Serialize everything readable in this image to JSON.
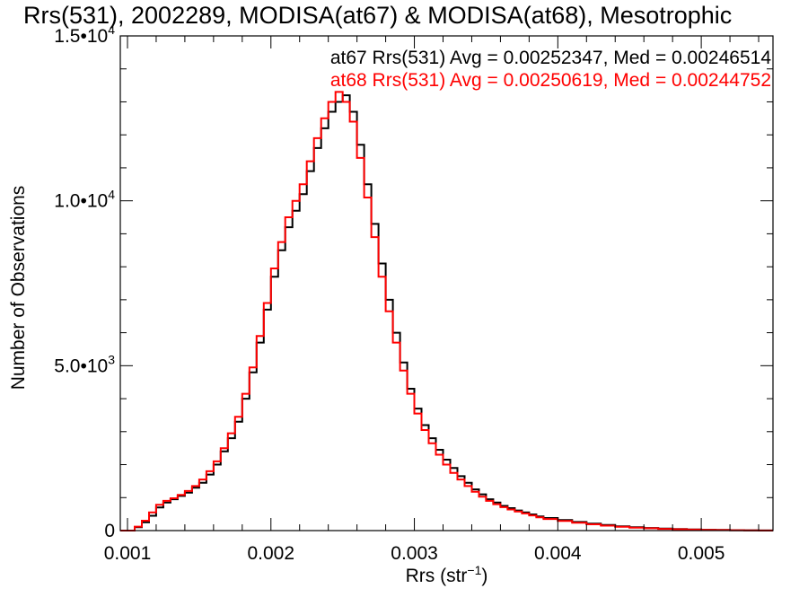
{
  "chart_data": {
    "type": "line",
    "title": "Rrs(531), 2002289, MODISA(at67) & MODISA(at68), Mesotrophic",
    "xlabel": "Rrs (str",
    "xlabel_sup": "-1",
    "xlabel_suffix": ")",
    "ylabel": "Number of Observations",
    "xlim": [
      0.00095,
      0.0055
    ],
    "ylim": [
      0,
      15000
    ],
    "x_ticks": [
      {
        "value": 0.001,
        "label": "0.001"
      },
      {
        "value": 0.002,
        "label": "0.002"
      },
      {
        "value": 0.003,
        "label": "0.003"
      },
      {
        "value": 0.004,
        "label": "0.004"
      },
      {
        "value": 0.005,
        "label": "0.005"
      }
    ],
    "y_ticks": [
      {
        "value": 0,
        "label": "0",
        "sup": ""
      },
      {
        "value": 5000,
        "label": "5.0•10",
        "sup": "3"
      },
      {
        "value": 10000,
        "label": "1.0•10",
        "sup": "4"
      },
      {
        "value": 15000,
        "label": "1.5•10",
        "sup": "4"
      }
    ],
    "grid": false,
    "legend_position": "top-right",
    "series": [
      {
        "name": "at67 Rrs(531) Avg = 0.00252347, Med = 0.00246514",
        "color": "#000000",
        "x": [
          0.00095,
          0.00105,
          0.0011,
          0.00115,
          0.0012,
          0.00125,
          0.0013,
          0.00135,
          0.0014,
          0.00145,
          0.0015,
          0.00155,
          0.0016,
          0.00165,
          0.0017,
          0.00175,
          0.0018,
          0.00185,
          0.0019,
          0.00195,
          0.002,
          0.00205,
          0.0021,
          0.00215,
          0.0022,
          0.00225,
          0.0023,
          0.00235,
          0.0024,
          0.00245,
          0.0025,
          0.00255,
          0.0026,
          0.00265,
          0.0027,
          0.00275,
          0.0028,
          0.00285,
          0.0029,
          0.00295,
          0.003,
          0.00305,
          0.0031,
          0.00315,
          0.0032,
          0.00325,
          0.0033,
          0.00335,
          0.0034,
          0.00345,
          0.0035,
          0.00355,
          0.0036,
          0.00365,
          0.0037,
          0.00375,
          0.0038,
          0.00385,
          0.0039,
          0.004,
          0.0041,
          0.0042,
          0.0043,
          0.0044,
          0.0045,
          0.0046,
          0.0047,
          0.0048,
          0.0049,
          0.005,
          0.0051,
          0.0052,
          0.0053,
          0.0054,
          0.0055
        ],
        "y": [
          0,
          100,
          250,
          450,
          700,
          850,
          950,
          1050,
          1150,
          1300,
          1450,
          1700,
          2000,
          2400,
          2800,
          3300,
          4000,
          4800,
          5700,
          6700,
          7700,
          8500,
          9200,
          9700,
          10200,
          10900,
          11600,
          12200,
          12700,
          13000,
          13200,
          12700,
          11700,
          10500,
          9300,
          8100,
          7000,
          6000,
          5100,
          4300,
          3700,
          3200,
          2800,
          2450,
          2150,
          1900,
          1650,
          1450,
          1250,
          1100,
          950,
          850,
          750,
          680,
          610,
          550,
          490,
          430,
          380,
          320,
          260,
          210,
          170,
          130,
          100,
          80,
          60,
          45,
          35,
          25,
          18,
          12,
          8,
          4,
          2
        ]
      },
      {
        "name": "at68 Rrs(531) Avg = 0.00250619, Med = 0.00244752",
        "color": "#ff0000",
        "x": [
          0.00095,
          0.00105,
          0.0011,
          0.00115,
          0.0012,
          0.00125,
          0.0013,
          0.00135,
          0.0014,
          0.00145,
          0.0015,
          0.00155,
          0.0016,
          0.00165,
          0.0017,
          0.00175,
          0.0018,
          0.00185,
          0.0019,
          0.00195,
          0.002,
          0.00205,
          0.0021,
          0.00215,
          0.0022,
          0.00225,
          0.0023,
          0.00235,
          0.0024,
          0.00245,
          0.0025,
          0.00255,
          0.0026,
          0.00265,
          0.0027,
          0.00275,
          0.0028,
          0.00285,
          0.0029,
          0.00295,
          0.003,
          0.00305,
          0.0031,
          0.00315,
          0.0032,
          0.00325,
          0.0033,
          0.00335,
          0.0034,
          0.00345,
          0.0035,
          0.00355,
          0.0036,
          0.00365,
          0.0037,
          0.00375,
          0.0038,
          0.00385,
          0.0039,
          0.004,
          0.0041,
          0.0042,
          0.0043,
          0.0044,
          0.0045,
          0.0046,
          0.0047,
          0.0048,
          0.0049,
          0.005,
          0.0051,
          0.0052,
          0.0053,
          0.0054,
          0.0055
        ],
        "y": [
          0,
          120,
          300,
          550,
          780,
          900,
          980,
          1080,
          1200,
          1350,
          1550,
          1800,
          2100,
          2500,
          2950,
          3450,
          4150,
          4950,
          5900,
          6900,
          7950,
          8750,
          9500,
          10000,
          10500,
          11200,
          11900,
          12500,
          13000,
          13300,
          13000,
          12400,
          11300,
          10100,
          8900,
          7700,
          6650,
          5700,
          4850,
          4150,
          3550,
          3050,
          2650,
          2300,
          2000,
          1750,
          1550,
          1350,
          1180,
          1030,
          900,
          800,
          710,
          640,
          580,
          520,
          460,
          400,
          350,
          290,
          240,
          190,
          150,
          115,
          90,
          70,
          52,
          40,
          30,
          22,
          15,
          10,
          6,
          3,
          2
        ]
      }
    ]
  }
}
